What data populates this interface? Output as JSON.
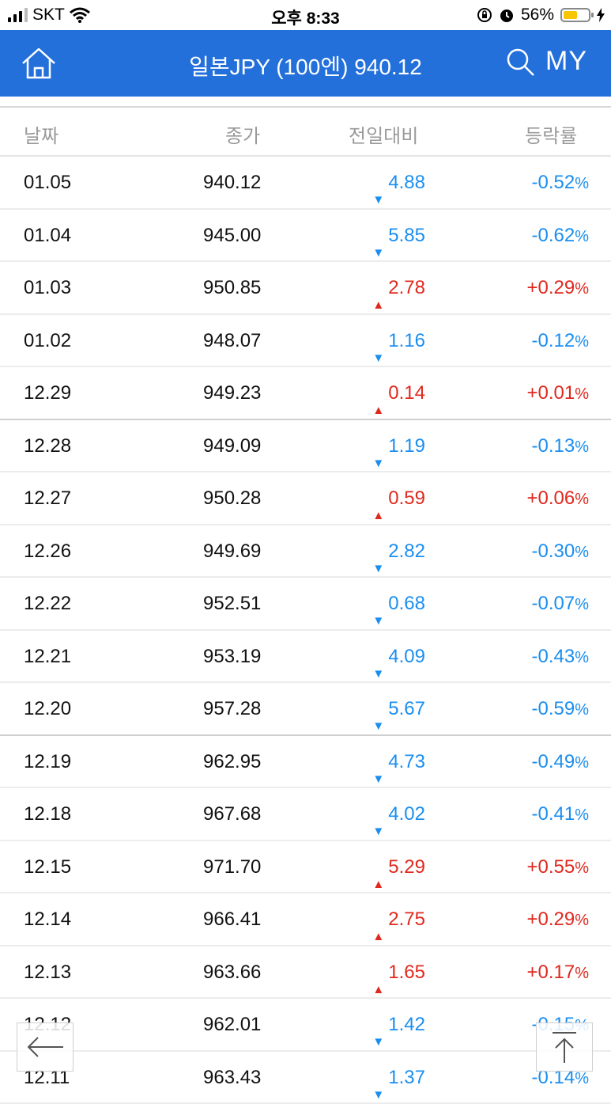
{
  "status_bar": {
    "carrier": "SKT",
    "time": "오후 8:33",
    "battery_percent": "56%",
    "battery_level": 0.56
  },
  "header": {
    "title": "일본JPY (100엔) 940.12",
    "my_label": "MY"
  },
  "columns": {
    "date": "날짜",
    "close": "종가",
    "change": "전일대비",
    "rate": "등락률"
  },
  "colors": {
    "up": "#e0281e",
    "down": "#1a8ef0",
    "header_bg": "#2470db"
  },
  "rows": [
    {
      "date": "01.05",
      "close": "940.12",
      "dir": "down",
      "change": "4.88",
      "rate": "-0.52"
    },
    {
      "date": "01.04",
      "close": "945.00",
      "dir": "down",
      "change": "5.85",
      "rate": "-0.62"
    },
    {
      "date": "01.03",
      "close": "950.85",
      "dir": "up",
      "change": "2.78",
      "rate": "+0.29"
    },
    {
      "date": "01.02",
      "close": "948.07",
      "dir": "down",
      "change": "1.16",
      "rate": "-0.12"
    },
    {
      "date": "12.29",
      "close": "949.23",
      "dir": "up",
      "change": "0.14",
      "rate": "+0.01"
    },
    {
      "date": "12.28",
      "close": "949.09",
      "dir": "down",
      "change": "1.19",
      "rate": "-0.13"
    },
    {
      "date": "12.27",
      "close": "950.28",
      "dir": "up",
      "change": "0.59",
      "rate": "+0.06"
    },
    {
      "date": "12.26",
      "close": "949.69",
      "dir": "down",
      "change": "2.82",
      "rate": "-0.30"
    },
    {
      "date": "12.22",
      "close": "952.51",
      "dir": "down",
      "change": "0.68",
      "rate": "-0.07"
    },
    {
      "date": "12.21",
      "close": "953.19",
      "dir": "down",
      "change": "4.09",
      "rate": "-0.43"
    },
    {
      "date": "12.20",
      "close": "957.28",
      "dir": "down",
      "change": "5.67",
      "rate": "-0.59"
    },
    {
      "date": "12.19",
      "close": "962.95",
      "dir": "down",
      "change": "4.73",
      "rate": "-0.49"
    },
    {
      "date": "12.18",
      "close": "967.68",
      "dir": "down",
      "change": "4.02",
      "rate": "-0.41"
    },
    {
      "date": "12.15",
      "close": "971.70",
      "dir": "up",
      "change": "5.29",
      "rate": "+0.55"
    },
    {
      "date": "12.14",
      "close": "966.41",
      "dir": "up",
      "change": "2.75",
      "rate": "+0.29"
    },
    {
      "date": "12.13",
      "close": "963.66",
      "dir": "up",
      "change": "1.65",
      "rate": "+0.17"
    },
    {
      "date": "12.12",
      "close": "962.01",
      "dir": "down",
      "change": "1.42",
      "rate": "-0.15"
    },
    {
      "date": "12.11",
      "close": "963.43",
      "dir": "down",
      "change": "1.37",
      "rate": "-0.14"
    }
  ],
  "icons": {
    "back": "arrow-left-icon",
    "top": "arrow-up-icon",
    "home": "home-icon",
    "search": "search-icon"
  }
}
